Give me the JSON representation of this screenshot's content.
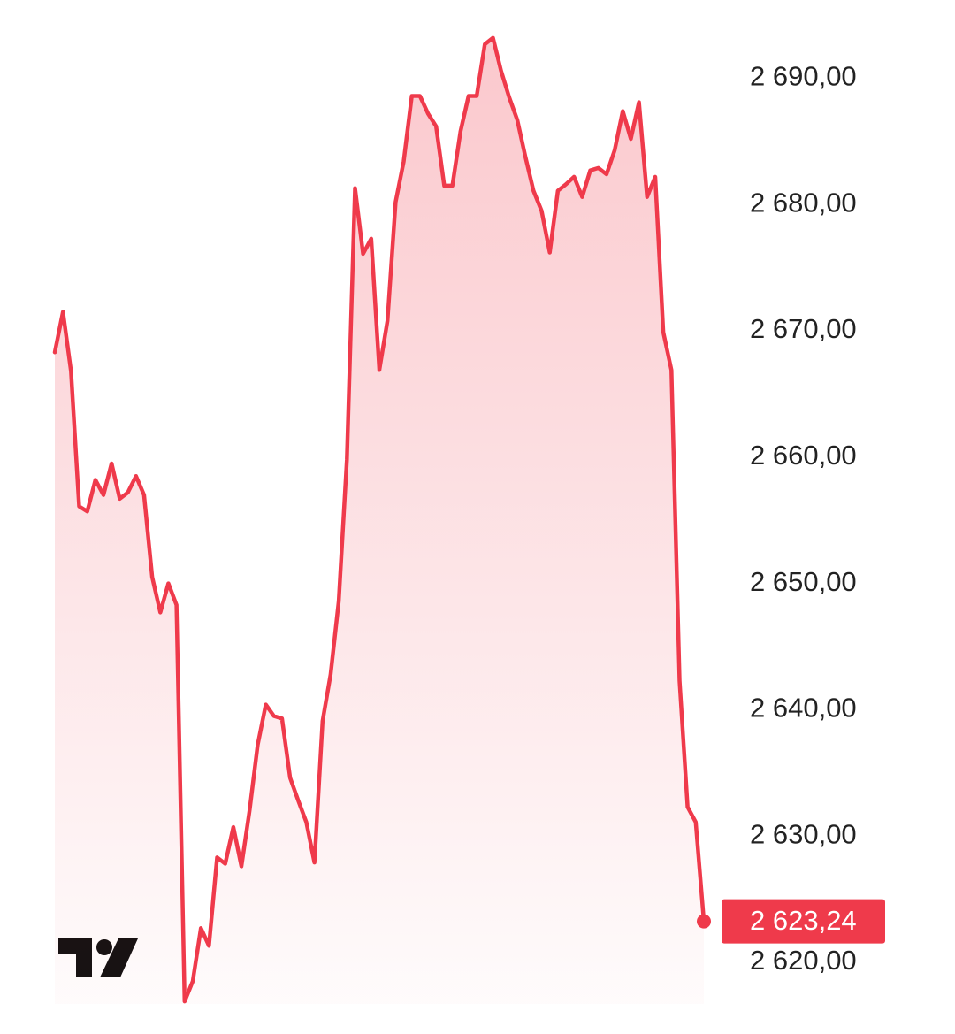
{
  "chart_data": {
    "type": "area",
    "color": "#ef3a4b",
    "values": [
      2668.3,
      2671.5,
      2666.8,
      2656.1,
      2655.7,
      2658.2,
      2657.0,
      2659.5,
      2656.7,
      2657.2,
      2658.5,
      2657.0,
      2650.5,
      2647.7,
      2650.0,
      2648.3,
      2616.9,
      2618.5,
      2622.7,
      2621.3,
      2628.3,
      2627.8,
      2630.7,
      2627.6,
      2632.0,
      2637.2,
      2640.4,
      2639.5,
      2639.3,
      2634.6,
      2632.8,
      2631.1,
      2627.9,
      2639.1,
      2642.8,
      2648.6,
      2659.8,
      2681.3,
      2676.1,
      2677.3,
      2666.9,
      2670.8,
      2680.2,
      2683.4,
      2688.6,
      2688.6,
      2687.2,
      2686.2,
      2681.5,
      2681.5,
      2685.8,
      2688.6,
      2688.6,
      2692.7,
      2693.2,
      2690.6,
      2688.5,
      2686.7,
      2683.8,
      2681.1,
      2679.5,
      2676.2,
      2681.1,
      2681.6,
      2682.2,
      2680.6,
      2682.7,
      2682.9,
      2682.4,
      2684.3,
      2687.4,
      2685.2,
      2688.1,
      2680.6,
      2682.2,
      2669.9,
      2666.9,
      2642.3,
      2632.3,
      2631.1,
      2623.24
    ],
    "value_labels": [
      null,
      null,
      null,
      null,
      null,
      null,
      null,
      null,
      null,
      null,
      null,
      null,
      null,
      null,
      null,
      null,
      null,
      null,
      null,
      null,
      null,
      null,
      null,
      null,
      null,
      null,
      null,
      null,
      null,
      null,
      null,
      null,
      null,
      null,
      null,
      null,
      null,
      null,
      null,
      null,
      null,
      null,
      null,
      null,
      null,
      null,
      null,
      null,
      null,
      null,
      null,
      null,
      null,
      null,
      null,
      null,
      null,
      null,
      null,
      null,
      null,
      null,
      null,
      null,
      null,
      null,
      null,
      null,
      null,
      null,
      null,
      null,
      null,
      null,
      null,
      null,
      null,
      null,
      null,
      null,
      "2 623,24"
    ],
    "ylim": [
      2616.7,
      2696.2
    ],
    "yticks": [
      {
        "value": 2620,
        "label": "2 620,00"
      },
      {
        "value": 2630,
        "label": "2 630,00"
      },
      {
        "value": 2640,
        "label": "2 640,00"
      },
      {
        "value": 2650,
        "label": "2 650,00"
      },
      {
        "value": 2660,
        "label": "2 660,00"
      },
      {
        "value": 2670,
        "label": "2 670,00"
      },
      {
        "value": 2680,
        "label": "2 680,00"
      },
      {
        "value": 2690,
        "label": "2 690,00"
      }
    ]
  }
}
